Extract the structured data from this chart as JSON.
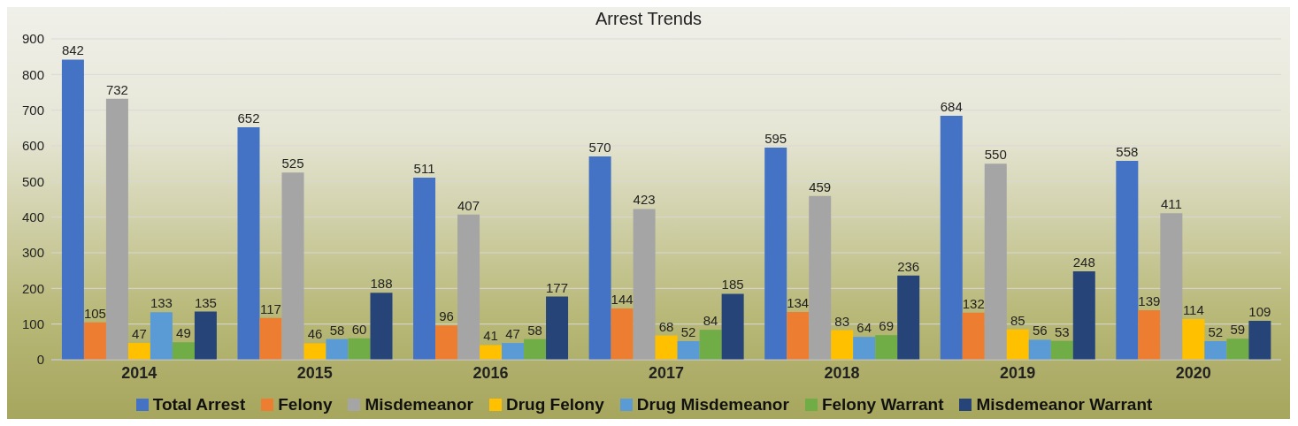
{
  "chart_data": {
    "type": "bar",
    "title": "Arrest Trends",
    "categories": [
      "2014",
      "2015",
      "2016",
      "2017",
      "2018",
      "2019",
      "2020"
    ],
    "series": [
      {
        "name": "Total Arrest",
        "color": "#4472c4",
        "values": [
          842,
          652,
          511,
          570,
          595,
          684,
          558
        ]
      },
      {
        "name": "Felony",
        "color": "#ed7d31",
        "values": [
          105,
          117,
          96,
          144,
          134,
          132,
          139
        ]
      },
      {
        "name": "Misdemeanor",
        "color": "#a5a5a5",
        "values": [
          732,
          525,
          407,
          423,
          459,
          550,
          411
        ]
      },
      {
        "name": "Drug Felony",
        "color": "#ffc000",
        "values": [
          47,
          46,
          41,
          68,
          83,
          85,
          114
        ]
      },
      {
        "name": "Drug Misdemeanor",
        "color": "#5b9bd5",
        "values": [
          133,
          58,
          47,
          52,
          64,
          56,
          52
        ]
      },
      {
        "name": "Felony Warrant",
        "color": "#70ad47",
        "values": [
          49,
          60,
          58,
          84,
          69,
          53,
          59
        ]
      },
      {
        "name": "Misdemeanor Warrant",
        "color": "#264478",
        "values": [
          135,
          188,
          177,
          185,
          236,
          248,
          109
        ]
      }
    ],
    "ylim": [
      0,
      900
    ],
    "yticks": [
      0,
      100,
      200,
      300,
      400,
      500,
      600,
      700,
      800,
      900
    ],
    "grid": "y",
    "legend": "bottom",
    "data_labels": true
  }
}
